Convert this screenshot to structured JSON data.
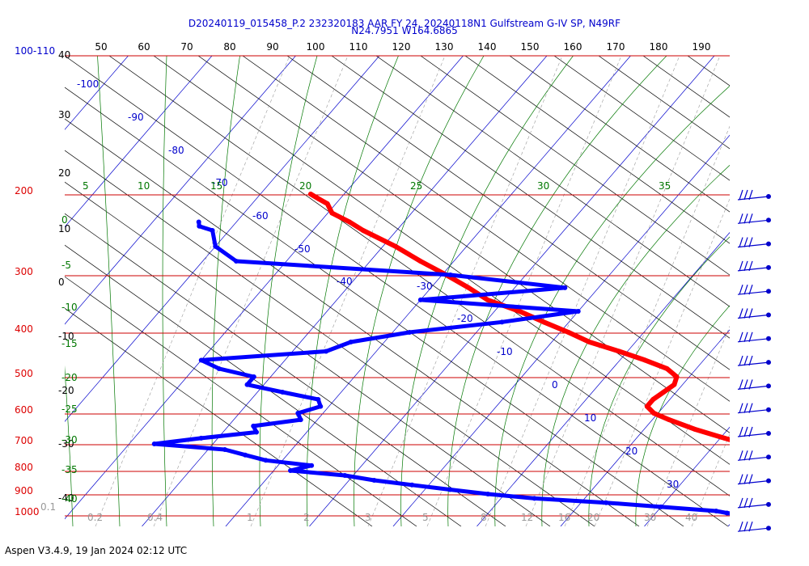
{
  "title_line1": "D20240119_015458_P.2 232320183 AAR FY 24, 20240118N1 Gulfstream G-IV SP, N49RF",
  "title_line2": "N24.7951 W164.6865",
  "footer": "Aspen V3.4.9, 19 Jan 2024  02:12 UTC",
  "colors": {
    "temperature": "#ff0000",
    "dewpoint": "#0000ff",
    "isobar": "#cc0000",
    "isotherm": "#0000cc",
    "dry_adiabat": "#000000",
    "moist_adiabat": "#007700",
    "mixing_ratio": "#999999"
  },
  "axis_labels": {
    "top_temp_f": [
      "50",
      "60",
      "70",
      "80",
      "90",
      "100",
      "110",
      "120",
      "130",
      "140",
      "150",
      "160",
      "170",
      "180",
      "190"
    ],
    "pressure": [
      "100-110",
      "200",
      "300",
      "400",
      "500",
      "600",
      "700",
      "800",
      "900",
      "1000"
    ],
    "height_kft": [
      "40",
      "30",
      "20",
      "10",
      "0",
      "-10",
      "-20",
      "-30",
      "-40"
    ],
    "isotherms": [
      "-100",
      "-90",
      "-80",
      "-70",
      "-60",
      "-50",
      "-40",
      "-30",
      "-20",
      "-10",
      "0",
      "10",
      "20",
      "30"
    ],
    "moist_adiabat_top": [
      "5",
      "10",
      "15",
      "20",
      "25",
      "30",
      "35"
    ],
    "moist_adiabat_left": [
      "0",
      "-5",
      "-10",
      "-15",
      "-20",
      "-25",
      "-30",
      "-35",
      "-40"
    ],
    "mixing_ratio": [
      "0.1",
      "0.2",
      "0.4",
      "1",
      "2",
      "3",
      "5",
      "8",
      "12",
      "16",
      "20",
      "30",
      "40"
    ]
  },
  "chart_data": {
    "type": "line",
    "chart_kind": "skew-T log-P sounding",
    "y_scale": "log pressure (hPa)",
    "ylim": [
      1000,
      100
    ],
    "grid": true,
    "series": [
      {
        "color": "#ff0000",
        "pressure_hPa": [
          1000,
          980,
          960,
          940,
          920,
          900,
          880,
          860,
          850,
          820,
          800,
          770,
          750,
          720,
          700,
          680,
          650,
          620,
          600,
          580,
          560,
          540,
          520,
          500,
          480,
          460,
          440,
          420,
          400,
          380,
          360,
          340,
          320,
          300,
          280,
          260,
          240,
          230,
          220,
          210,
          205,
          200
        ],
        "values_C": [
          26.5,
          25,
          22.5,
          20.8,
          21,
          21.5,
          24,
          27.5,
          27,
          25,
          24,
          22,
          19.5,
          16,
          13.5,
          10.5,
          6,
          2,
          -0.5,
          -2,
          -2,
          -1.5,
          -1,
          -1.5,
          -3.5,
          -7,
          -11,
          -15.5,
          -19,
          -23,
          -27,
          -32,
          -35.5,
          -39.5,
          -44,
          -48.5,
          -54,
          -56.5,
          -59.5,
          -61,
          -62.5,
          -64
        ]
      },
      {
        "color": "#0000ff",
        "pressure_hPa": [
          1000,
          990,
          980,
          960,
          940,
          920,
          900,
          880,
          860,
          840,
          820,
          800,
          780,
          760,
          740,
          720,
          700,
          680,
          660,
          640,
          620,
          600,
          580,
          560,
          540,
          520,
          500,
          480,
          460,
          440,
          420,
          400,
          380,
          360,
          340,
          320,
          300,
          280,
          260,
          240,
          235,
          230
        ],
        "values_C": [
          20.5,
          18.5,
          17,
          10,
          3,
          -6,
          -12,
          -17,
          -22,
          -27,
          -31,
          -38,
          -36,
          -42,
          -45,
          -48,
          -57,
          -52,
          -46,
          -47,
          -42,
          -43,
          -41,
          -42,
          -47,
          -52,
          -52,
          -57,
          -60,
          -46,
          -44,
          -38,
          -28,
          -20,
          -40,
          -24,
          -39,
          -66,
          -70,
          -72,
          -74,
          -74.5
        ]
      }
    ],
    "wind_barbs": 15
  }
}
